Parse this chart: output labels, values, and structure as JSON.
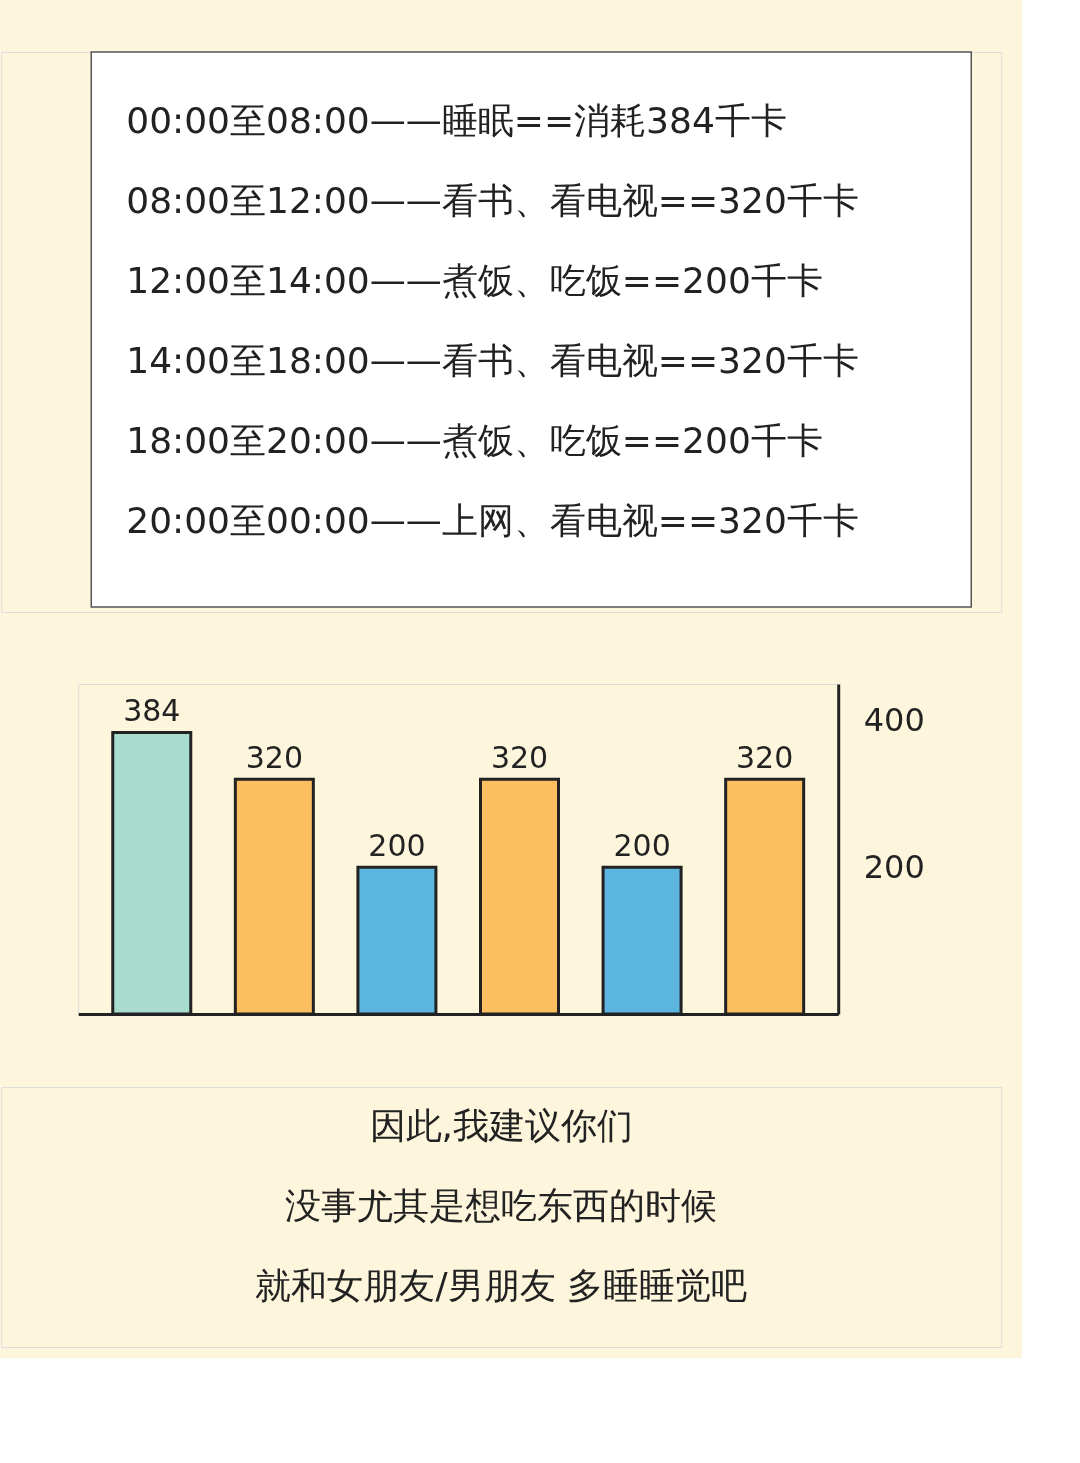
{
  "chart_data": {
    "type": "bar",
    "categories": [
      null,
      null,
      null,
      null,
      null,
      null
    ],
    "values": [
      384,
      320,
      200,
      320,
      200,
      320
    ],
    "colors": [
      "#a8dccf",
      "#fbbf5f",
      "#5bb5de",
      "#fbbf5f",
      "#5bb5de",
      "#fbbf5f"
    ],
    "data_labels": true,
    "ylim": [
      0,
      450
    ],
    "yticks": [
      200,
      400
    ],
    "grid": false,
    "tick_labels": "y",
    "annotations": [
      "00:00至08:00——睡眠==消耗384千卡",
      "08:00至12:00——看书、看电视==320千卡",
      "12:00至14:00——煮饭、吃饭==200千卡",
      "14:00至18:00——看书、看电视==320千卡",
      "18:00至20:00——煮饭、吃饭==200千卡",
      "20:00至00:00——上网、看电视==320千卡",
      "因此,我建议你们",
      "没事尤其是想吃东西的时候",
      "就和女朋友/男朋友 多睡睡觉吧"
    ]
  }
}
